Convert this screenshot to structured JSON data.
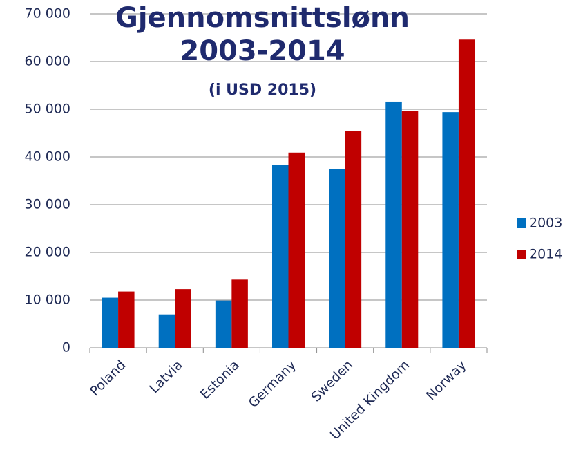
{
  "chart_data": {
    "type": "bar",
    "title": "Gjennomsnittslønn 2003-2014",
    "subtitle": "(i USD 2015)",
    "categories": [
      "Poland",
      "Latvia",
      "Estonia",
      "Germany",
      "Sweden",
      "United Kingdom",
      "Norway"
    ],
    "series": [
      {
        "name": "2003",
        "color": "#0070c0",
        "values": [
          10500,
          7000,
          9900,
          38300,
          37500,
          51600,
          49400
        ]
      },
      {
        "name": "2014",
        "color": "#c00000",
        "values": [
          11800,
          12300,
          14300,
          40900,
          45500,
          49700,
          64600
        ]
      }
    ],
    "ylim": [
      0,
      70000
    ],
    "yticks": [
      0,
      {
        "value": 10000,
        "label": "10 000"
      },
      {
        "value": 20000,
        "label": "20 000"
      },
      {
        "value": 30000,
        "label": "30 000"
      },
      {
        "value": 40000,
        "label": "40 000"
      },
      {
        "value": 50000,
        "label": "50 000"
      },
      {
        "value": 60000,
        "label": "60 000"
      },
      {
        "value": 70000,
        "label": "70 000"
      }
    ],
    "grid": true,
    "legend": "right"
  }
}
